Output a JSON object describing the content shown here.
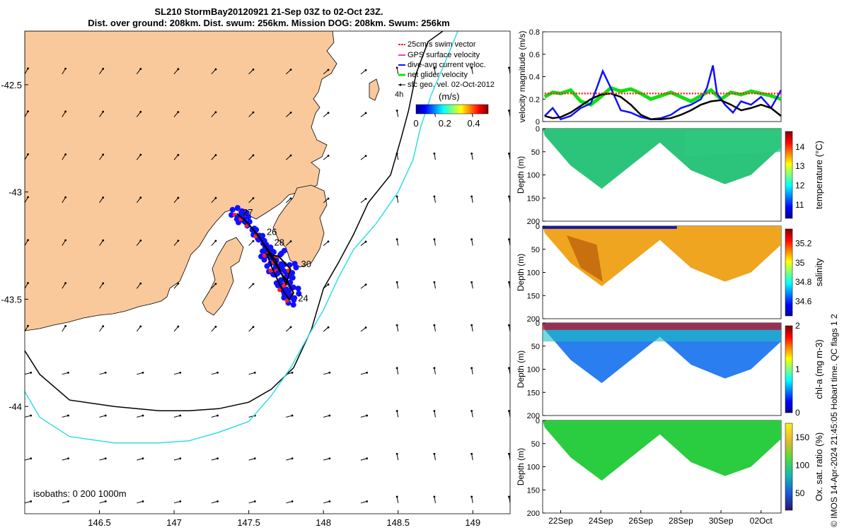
{
  "title_line1": "SL210 StormBay20120921 21-Sep 03Z to 02-Oct 23Z.",
  "title_line2": "Dist. over ground: 208km. Dist. swum: 256km. Mission DOG: 208km. Swum: 256km",
  "copyright": "© IMOS 14-Apr-2024 21:45:05 Hobart time. QC flags 1  2",
  "colors": {
    "land": "#fac99b",
    "isobath_200": "#000000",
    "isobath_1000": "#2fdfe0",
    "swim_vector": "#ff2020",
    "gps_velocity": "#e040e0",
    "dive_avg": "#1010ff",
    "net_glider": "#10e010",
    "sfc_geo": "#000000"
  },
  "chart_data": [
    {
      "type": "map",
      "xlim": [
        146.0,
        149.25
      ],
      "ylim": [
        -44.5,
        -42.25
      ],
      "xticks": [
        "146.5",
        "147",
        "147.5",
        "148",
        "148.5",
        "149"
      ],
      "xtick_values": [
        146.5,
        147.0,
        147.5,
        148.0,
        148.5,
        149.0
      ],
      "yticks": [
        "-42.5",
        "-43",
        "-43.5",
        "-44"
      ],
      "ytick_values": [
        -42.5,
        -43.0,
        -43.5,
        -44.0
      ],
      "legend": {
        "placement": "top-right",
        "entries": [
          "25cm/s swim vector",
          "GPS surface velocity",
          "dive-avg current veloc.",
          "net glider velocity",
          "sfc geo. vel. 02-Oct-2012"
        ],
        "arrow_label": "4h"
      },
      "colorbar": {
        "label": "(m/s)",
        "ticks": [
          "0",
          "0.2",
          "0.4"
        ],
        "tick_values": [
          0,
          0.2,
          0.4
        ],
        "range": [
          0,
          0.5
        ]
      },
      "isobaths_label": "isobaths: 0   200  1000m",
      "day_labels": [
        {
          "label": "27",
          "lon": 147.46,
          "lat": -43.11
        },
        {
          "label": "26",
          "lon": 147.62,
          "lat": -43.2
        },
        {
          "label": "28",
          "lon": 147.67,
          "lat": -43.25
        },
        {
          "label": "30",
          "lon": 147.85,
          "lat": -43.35
        },
        {
          "label": "24",
          "lon": 147.83,
          "lat": -43.51
        }
      ],
      "track": [
        [
          147.42,
          -43.1
        ],
        [
          147.5,
          -43.15
        ],
        [
          147.58,
          -43.22
        ],
        [
          147.63,
          -43.28
        ],
        [
          147.7,
          -43.36
        ],
        [
          147.76,
          -43.42
        ],
        [
          147.8,
          -43.47
        ],
        [
          147.77,
          -43.5
        ],
        [
          147.72,
          -43.45
        ],
        [
          147.66,
          -43.36
        ],
        [
          147.62,
          -43.29
        ],
        [
          147.7,
          -43.3
        ],
        [
          147.78,
          -43.36
        ],
        [
          147.75,
          -43.43
        ],
        [
          147.68,
          -43.32
        ],
        [
          147.56,
          -43.2
        ],
        [
          147.46,
          -43.12
        ]
      ],
      "isobath_200": [
        [
          146.0,
          -43.74
        ],
        [
          146.1,
          -43.85
        ],
        [
          146.3,
          -43.97
        ],
        [
          146.6,
          -44.0
        ],
        [
          146.9,
          -44.02
        ],
        [
          147.1,
          -44.02
        ],
        [
          147.3,
          -44.01
        ],
        [
          147.5,
          -43.98
        ],
        [
          147.65,
          -43.92
        ],
        [
          147.8,
          -43.82
        ],
        [
          147.92,
          -43.64
        ],
        [
          148.0,
          -43.45
        ],
        [
          148.1,
          -43.33
        ],
        [
          148.2,
          -43.2
        ],
        [
          148.3,
          -43.05
        ],
        [
          148.45,
          -42.92
        ],
        [
          148.52,
          -42.75
        ],
        [
          148.57,
          -42.62
        ],
        [
          148.62,
          -42.45
        ],
        [
          148.7,
          -42.3
        ],
        [
          148.8,
          -42.25
        ]
      ],
      "isobath_1000": [
        [
          146.0,
          -43.93
        ],
        [
          146.1,
          -44.05
        ],
        [
          146.3,
          -44.14
        ],
        [
          146.6,
          -44.17
        ],
        [
          146.9,
          -44.17
        ],
        [
          147.1,
          -44.16
        ],
        [
          147.3,
          -44.12
        ],
        [
          147.5,
          -44.07
        ],
        [
          147.65,
          -43.95
        ],
        [
          147.78,
          -43.82
        ],
        [
          147.9,
          -43.67
        ],
        [
          148.0,
          -43.55
        ],
        [
          148.1,
          -43.4
        ],
        [
          148.2,
          -43.27
        ],
        [
          148.35,
          -43.15
        ],
        [
          148.5,
          -43.0
        ],
        [
          148.6,
          -42.85
        ],
        [
          148.65,
          -42.7
        ],
        [
          148.72,
          -42.55
        ],
        [
          148.8,
          -42.42
        ],
        [
          148.9,
          -42.25
        ]
      ],
      "sfc_arrow_grid": {
        "lon_step": 0.25,
        "lat_step": 0.2
      }
    },
    {
      "type": "line",
      "ylabel": "velocity magnitude (m/s)",
      "ylim": [
        0,
        0.8
      ],
      "yticks": [
        "0",
        "0.2",
        "0.4",
        "0.6",
        "0.8"
      ],
      "ytick_values": [
        0,
        0.2,
        0.4,
        0.6,
        0.8
      ],
      "xlim": [
        21.1,
        33.0
      ],
      "series": [
        {
          "color": "#10e010",
          "x": [
            21.2,
            21.6,
            22.0,
            22.5,
            23.0,
            23.5,
            24.0,
            24.5,
            25.0,
            25.5,
            26.0,
            26.5,
            27.0,
            27.5,
            28.0,
            28.5,
            29.0,
            29.5,
            30.0,
            30.5,
            31.0,
            31.5,
            32.0,
            32.5,
            33.0
          ],
          "values": [
            0.22,
            0.26,
            0.25,
            0.28,
            0.18,
            0.15,
            0.22,
            0.3,
            0.27,
            0.29,
            0.25,
            0.2,
            0.23,
            0.26,
            0.22,
            0.18,
            0.23,
            0.28,
            0.2,
            0.26,
            0.24,
            0.27,
            0.25,
            0.23,
            0.2
          ]
        },
        {
          "color": "#1010ff",
          "x": [
            21.2,
            21.6,
            22.0,
            22.5,
            23.0,
            23.5,
            23.8,
            24.1,
            24.5,
            25.0,
            25.5,
            26.0,
            26.5,
            27.0,
            27.5,
            28.0,
            28.5,
            29.0,
            29.3,
            29.6,
            29.8,
            30.2,
            30.6,
            31.0,
            31.5,
            32.0,
            32.5,
            33.0
          ],
          "values": [
            0.05,
            0.12,
            0.02,
            0.05,
            0.12,
            0.16,
            0.3,
            0.45,
            0.3,
            0.1,
            0.08,
            0.04,
            0.02,
            0.03,
            0.06,
            0.12,
            0.15,
            0.2,
            0.3,
            0.5,
            0.25,
            0.15,
            0.08,
            0.18,
            0.15,
            0.22,
            0.12,
            0.28
          ]
        },
        {
          "color": "#000000",
          "x": [
            21.2,
            21.6,
            22.0,
            22.5,
            23.0,
            23.5,
            24.0,
            24.5,
            25.0,
            25.5,
            26.0,
            26.5,
            27.0,
            27.5,
            28.0,
            28.5,
            29.0,
            29.5,
            30.0,
            30.5,
            31.0,
            31.5,
            32.0,
            32.5,
            33.0
          ],
          "values": [
            0.05,
            0.03,
            0.04,
            0.08,
            0.14,
            0.2,
            0.24,
            0.25,
            0.22,
            0.15,
            0.06,
            0.02,
            0.02,
            0.03,
            0.06,
            0.1,
            0.15,
            0.18,
            0.19,
            0.15,
            0.1,
            0.12,
            0.15,
            0.12,
            0.05
          ]
        },
        {
          "color": "#ff2020",
          "dashed": true,
          "x": [
            21.2,
            33.0
          ],
          "values": [
            0.25,
            0.25
          ]
        }
      ]
    },
    {
      "type": "heatmap",
      "ylabel": "Depth (m)",
      "cbar_label": "temperature (°C)",
      "cbar_ticks": [
        "11",
        "12",
        "13",
        "14"
      ],
      "cbar_tick_values": [
        11,
        12,
        13,
        14
      ],
      "cbar_range": [
        10.3,
        14.8
      ],
      "ylim": [
        200,
        0
      ],
      "yticks": [
        "0",
        "50",
        "100",
        "150",
        "200"
      ],
      "ytick_values": [
        0,
        50,
        100,
        150,
        200
      ],
      "x": [
        21.2,
        24.05,
        26.95,
        30.2,
        33.0
      ],
      "values": [
        12.8,
        12.5,
        12.8,
        12.4,
        12.9
      ]
    },
    {
      "type": "heatmap",
      "ylabel": "Depth (m)",
      "cbar_label": "salinity",
      "cbar_ticks": [
        "34.6",
        "34.8",
        "35",
        "35.2"
      ],
      "cbar_tick_values": [
        34.6,
        34.8,
        35.0,
        35.2
      ],
      "cbar_range": [
        34.45,
        35.35
      ],
      "ylim": [
        200,
        0
      ],
      "yticks": [
        "0",
        "50",
        "100",
        "150",
        "200"
      ],
      "ytick_values": [
        0,
        50,
        100,
        150,
        200
      ],
      "x": [
        21.2,
        24.05,
        26.95,
        30.2,
        33.0
      ],
      "values": [
        35.15,
        35.25,
        35.1,
        35.1,
        35.05
      ]
    },
    {
      "type": "heatmap",
      "ylabel": "Depth (m)",
      "cbar_label": "chl-a (mg m-3)",
      "cbar_ticks": [
        "0",
        "1",
        "2"
      ],
      "cbar_tick_values": [
        0,
        1,
        2
      ],
      "cbar_range": [
        0,
        2
      ],
      "ylim": [
        200,
        0
      ],
      "yticks": [
        "0",
        "50",
        "100",
        "150",
        "200"
      ],
      "ytick_values": [
        0,
        50,
        100,
        150,
        200
      ],
      "x": [
        21.2,
        24.05,
        26.95,
        30.2,
        33.0
      ],
      "values": [
        0.55,
        0.5,
        0.6,
        0.5,
        0.6
      ]
    },
    {
      "type": "heatmap",
      "ylabel": "Depth (m)",
      "cbar_label": "Ox. sat. ratio (%)",
      "cbar_ticks": [
        "50",
        "100",
        "150"
      ],
      "cbar_tick_values": [
        50,
        100,
        150
      ],
      "cbar_range": [
        20,
        175
      ],
      "ylim": [
        200,
        0
      ],
      "yticks": [
        "0",
        "50",
        "100",
        "150",
        "200"
      ],
      "ytick_values": [
        0,
        50,
        100,
        150,
        200
      ],
      "x": [
        21.2,
        24.05,
        26.95,
        30.2,
        33.0
      ],
      "values": [
        100,
        100,
        100,
        100,
        100
      ],
      "xticks": [
        "22Sep",
        "24Sep",
        "26Sep",
        "28Sep",
        "30Sep",
        "02Oct"
      ],
      "xtick_values": [
        22,
        24,
        26,
        28,
        30,
        32
      ]
    }
  ]
}
